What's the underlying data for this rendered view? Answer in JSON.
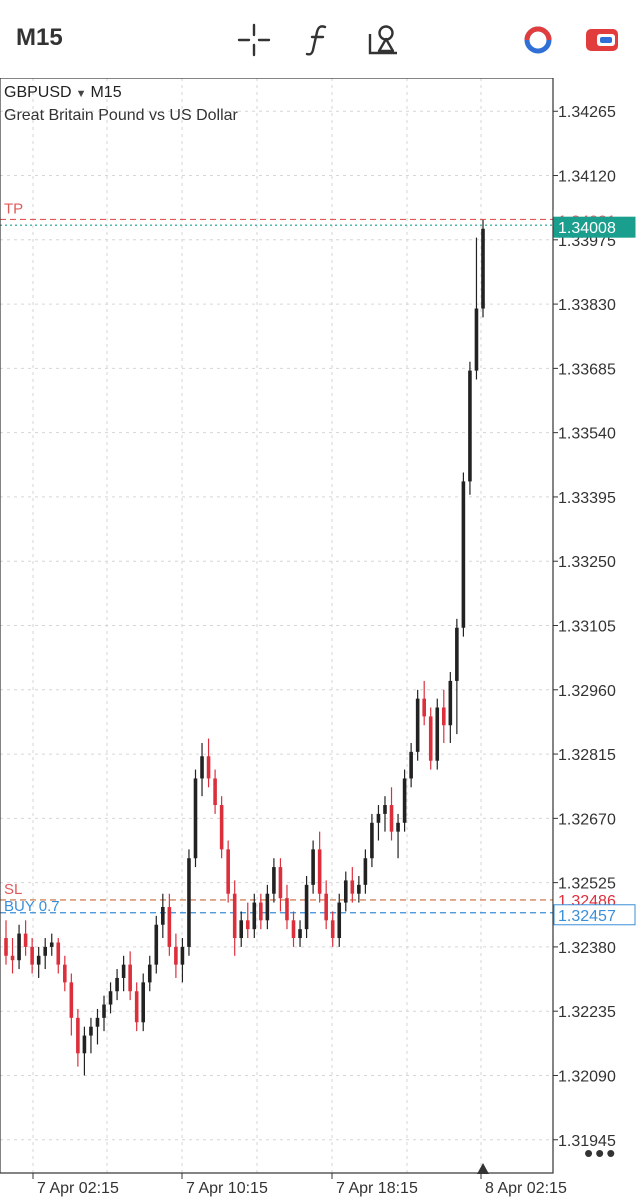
{
  "toolbar": {
    "timeframe": "M15",
    "icons": [
      "crosshair-icon",
      "function-icon",
      "objects-icon",
      "indicator-ring-icon",
      "trade-icon"
    ]
  },
  "colors": {
    "bull": "#222222",
    "bear": "#dc2f3c",
    "grid": "#d6d6d6",
    "tp_line": "#e05a5a",
    "sl_line": "#c86a3a",
    "buy_line": "#3a8fd9",
    "ask_line": "#1a9f8e"
  },
  "chart_data": {
    "type": "candlestick",
    "symbol": "GBPUSD",
    "timeframe": "M15",
    "description": "Great Britain Pound vs US Dollar",
    "ylim": [
      1.3187,
      1.3434
    ],
    "y_ticks": [
      "1.34265",
      "1.34120",
      "1.33975",
      "1.33830",
      "1.33685",
      "1.33540",
      "1.33395",
      "1.33250",
      "1.33105",
      "1.32960",
      "1.32815",
      "1.32670",
      "1.32525",
      "1.32380",
      "1.32235",
      "1.32090",
      "1.31945"
    ],
    "x_ticks": [
      "7 Apr 02:15",
      "7 Apr 10:15",
      "7 Apr 18:15",
      "8 Apr 02:15"
    ],
    "levels": {
      "tp": {
        "label": "TP",
        "value": 1.34021,
        "price_text": "1.34021"
      },
      "current": {
        "value": 1.34008,
        "price_text": "1.34008"
      },
      "sl": {
        "label": "SL",
        "value": 1.32486,
        "price_text": "1.32486"
      },
      "buy": {
        "label": "BUY 0.7",
        "value": 1.32457,
        "price_text": "1.32457"
      }
    },
    "candles": [
      [
        1.324,
        1.3244,
        1.3234,
        1.3236
      ],
      [
        1.3236,
        1.324,
        1.3232,
        1.3235
      ],
      [
        1.3235,
        1.3243,
        1.3233,
        1.3241
      ],
      [
        1.3241,
        1.3244,
        1.3236,
        1.3238
      ],
      [
        1.3238,
        1.324,
        1.3232,
        1.3234
      ],
      [
        1.3234,
        1.3238,
        1.3231,
        1.3236
      ],
      [
        1.3236,
        1.324,
        1.3233,
        1.3238
      ],
      [
        1.3238,
        1.3241,
        1.3236,
        1.3239
      ],
      [
        1.3239,
        1.324,
        1.3232,
        1.3234
      ],
      [
        1.3234,
        1.3236,
        1.3228,
        1.323
      ],
      [
        1.323,
        1.3232,
        1.3218,
        1.3222
      ],
      [
        1.3222,
        1.3224,
        1.3211,
        1.3214
      ],
      [
        1.3214,
        1.322,
        1.3209,
        1.3218
      ],
      [
        1.3218,
        1.3222,
        1.3214,
        1.322
      ],
      [
        1.322,
        1.3224,
        1.3216,
        1.3222
      ],
      [
        1.3222,
        1.3227,
        1.3219,
        1.3225
      ],
      [
        1.3225,
        1.323,
        1.3223,
        1.3228
      ],
      [
        1.3228,
        1.3233,
        1.3226,
        1.3231
      ],
      [
        1.3231,
        1.3236,
        1.3228,
        1.3234
      ],
      [
        1.3234,
        1.3237,
        1.3226,
        1.3228
      ],
      [
        1.3228,
        1.323,
        1.3219,
        1.3221
      ],
      [
        1.3221,
        1.3232,
        1.3219,
        1.323
      ],
      [
        1.323,
        1.3236,
        1.3228,
        1.3234
      ],
      [
        1.3234,
        1.3245,
        1.3232,
        1.3243
      ],
      [
        1.3243,
        1.325,
        1.324,
        1.3247
      ],
      [
        1.3247,
        1.325,
        1.3236,
        1.3238
      ],
      [
        1.3238,
        1.3241,
        1.3231,
        1.3234
      ],
      [
        1.3234,
        1.324,
        1.323,
        1.3238
      ],
      [
        1.3238,
        1.326,
        1.3236,
        1.3258
      ],
      [
        1.3258,
        1.3278,
        1.3256,
        1.3276
      ],
      [
        1.3276,
        1.3284,
        1.3272,
        1.3281
      ],
      [
        1.3281,
        1.3285,
        1.3274,
        1.3276
      ],
      [
        1.3276,
        1.3278,
        1.3268,
        1.327
      ],
      [
        1.327,
        1.3272,
        1.3258,
        1.326
      ],
      [
        1.326,
        1.3262,
        1.3248,
        1.325
      ],
      [
        1.325,
        1.3253,
        1.3236,
        1.324
      ],
      [
        1.324,
        1.3246,
        1.3238,
        1.3244
      ],
      [
        1.3244,
        1.3248,
        1.324,
        1.3242
      ],
      [
        1.3242,
        1.325,
        1.324,
        1.3248
      ],
      [
        1.3248,
        1.325,
        1.3242,
        1.3244
      ],
      [
        1.3244,
        1.3252,
        1.3242,
        1.325
      ],
      [
        1.325,
        1.3258,
        1.3248,
        1.3256
      ],
      [
        1.3256,
        1.3258,
        1.3246,
        1.3249
      ],
      [
        1.3249,
        1.3252,
        1.3242,
        1.3244
      ],
      [
        1.3244,
        1.3246,
        1.3238,
        1.324
      ],
      [
        1.324,
        1.3244,
        1.3238,
        1.3242
      ],
      [
        1.3242,
        1.3254,
        1.324,
        1.3252
      ],
      [
        1.3252,
        1.3262,
        1.325,
        1.326
      ],
      [
        1.326,
        1.3264,
        1.3248,
        1.325
      ],
      [
        1.325,
        1.3253,
        1.3242,
        1.3244
      ],
      [
        1.3244,
        1.3246,
        1.3238,
        1.324
      ],
      [
        1.324,
        1.325,
        1.3238,
        1.3248
      ],
      [
        1.3248,
        1.3255,
        1.3246,
        1.3253
      ],
      [
        1.3253,
        1.3256,
        1.3248,
        1.325
      ],
      [
        1.325,
        1.3254,
        1.3248,
        1.3252
      ],
      [
        1.3252,
        1.326,
        1.325,
        1.3258
      ],
      [
        1.3258,
        1.3268,
        1.3256,
        1.3266
      ],
      [
        1.3266,
        1.327,
        1.3262,
        1.3268
      ],
      [
        1.3268,
        1.3272,
        1.3264,
        1.327
      ],
      [
        1.327,
        1.3274,
        1.3262,
        1.3264
      ],
      [
        1.3264,
        1.3268,
        1.3258,
        1.3266
      ],
      [
        1.3266,
        1.3278,
        1.3264,
        1.3276
      ],
      [
        1.3276,
        1.3284,
        1.3274,
        1.3282
      ],
      [
        1.3282,
        1.3296,
        1.328,
        1.3294
      ],
      [
        1.3294,
        1.3298,
        1.3288,
        1.329
      ],
      [
        1.329,
        1.3292,
        1.3278,
        1.328
      ],
      [
        1.328,
        1.3294,
        1.3278,
        1.3292
      ],
      [
        1.3292,
        1.3296,
        1.3284,
        1.3288
      ],
      [
        1.3288,
        1.33,
        1.3284,
        1.3298
      ],
      [
        1.3298,
        1.3312,
        1.3286,
        1.331
      ],
      [
        1.331,
        1.3345,
        1.3308,
        1.3343
      ],
      [
        1.3343,
        1.337,
        1.334,
        1.3368
      ],
      [
        1.3368,
        1.3398,
        1.3366,
        1.3382
      ],
      [
        1.3382,
        1.3402,
        1.338,
        1.34
      ]
    ]
  }
}
